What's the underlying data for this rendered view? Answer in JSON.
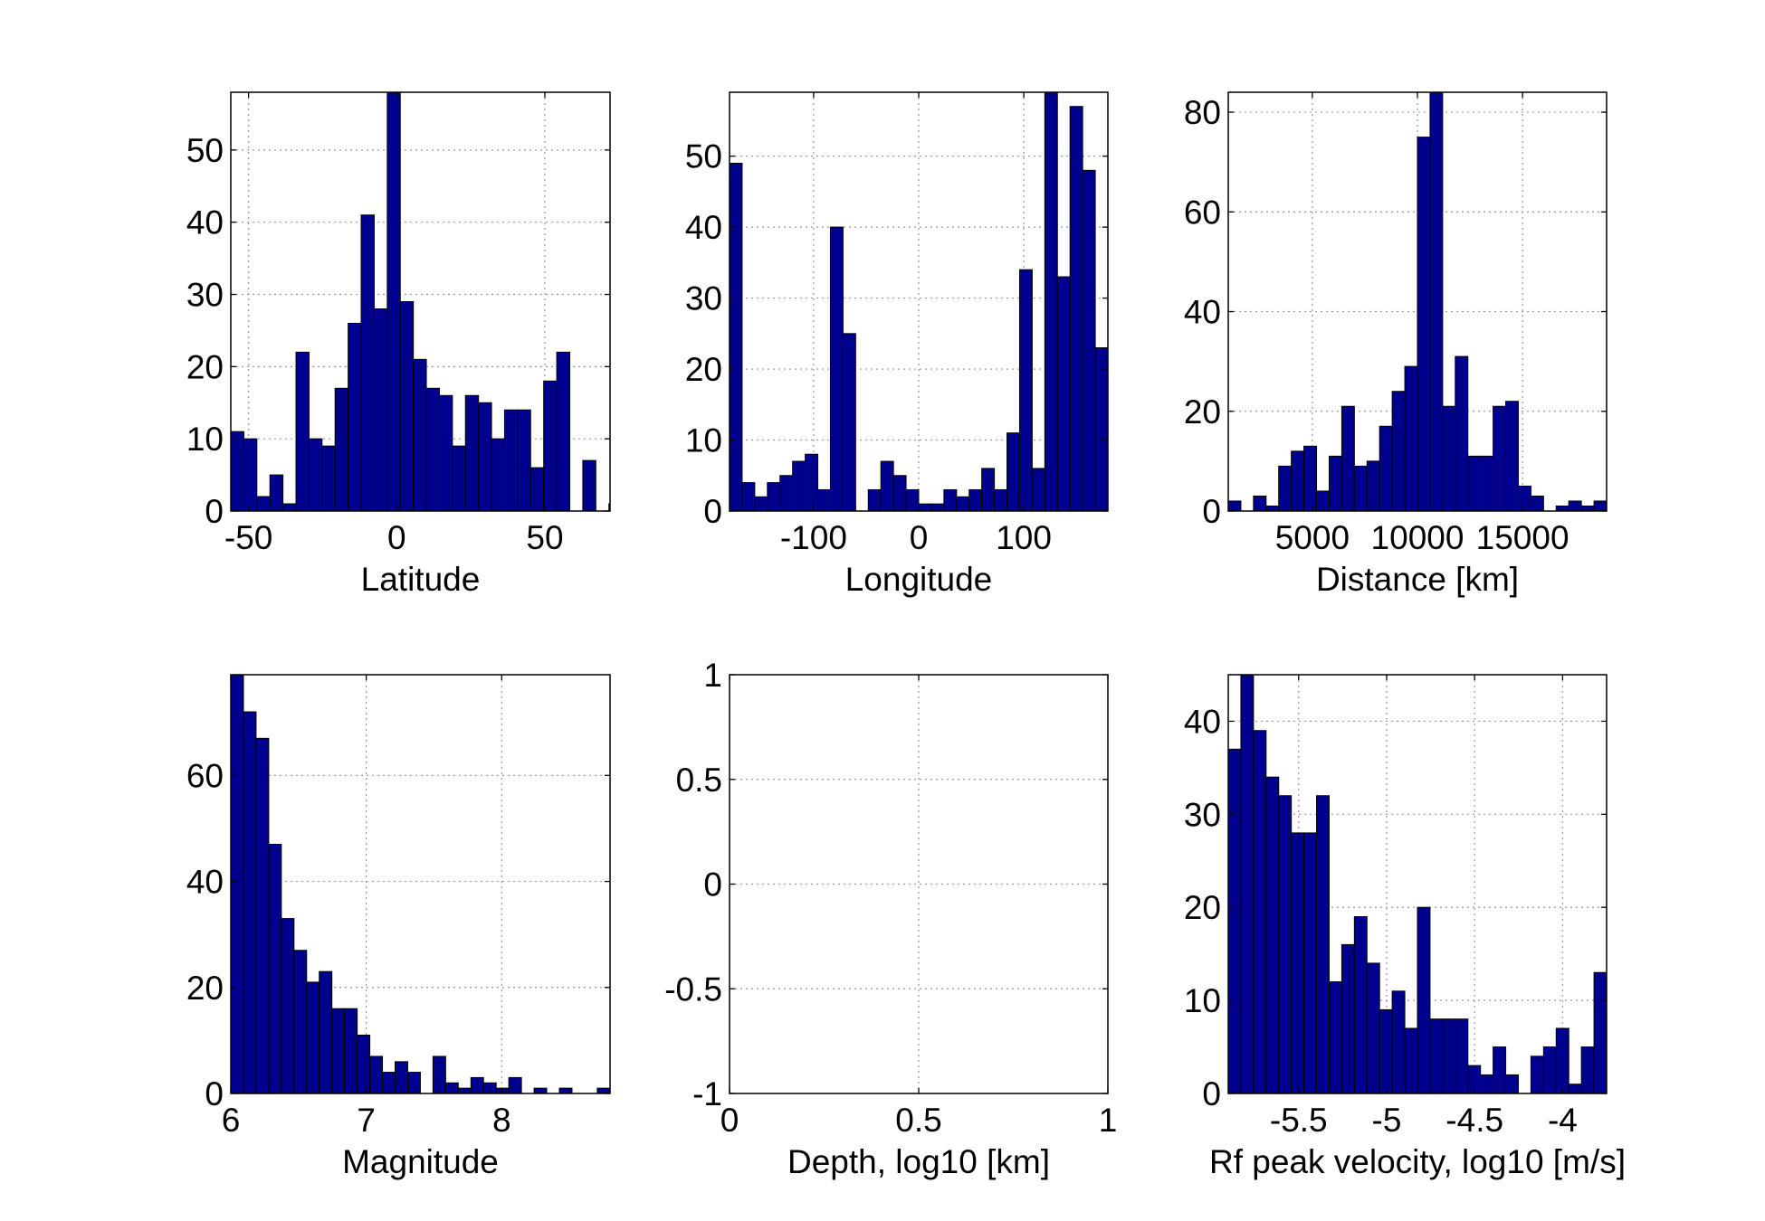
{
  "figure": {
    "bar_color": "#00008f",
    "bar_edge_color": "#000000",
    "grid": true
  },
  "chart_data": [
    {
      "type": "bar",
      "xlabel": "Latitude",
      "xlim": [
        -56,
        72
      ],
      "ylim": [
        0,
        58
      ],
      "xticks": [
        -50,
        0,
        50
      ],
      "xtick_labels": [
        "-50",
        "0",
        "50"
      ],
      "yticks": [
        0,
        10,
        20,
        30,
        40,
        50
      ],
      "ytick_labels": [
        "0",
        "10",
        "20",
        "30",
        "40",
        "50"
      ],
      "bin_start": -56,
      "bin_width": 4.4,
      "values": [
        11,
        10,
        2,
        5,
        1,
        22,
        10,
        9,
        17,
        26,
        41,
        28,
        58,
        29,
        21,
        17,
        16,
        9,
        16,
        15,
        10,
        14,
        14,
        6,
        18,
        22,
        0,
        7,
        0,
        1
      ]
    },
    {
      "type": "bar",
      "xlabel": "Longitude",
      "xlim": [
        -180,
        180
      ],
      "ylim": [
        0,
        59
      ],
      "xticks": [
        -100,
        0,
        100
      ],
      "xtick_labels": [
        "-100",
        "0",
        "100"
      ],
      "yticks": [
        0,
        10,
        20,
        30,
        40,
        50
      ],
      "ytick_labels": [
        "0",
        "10",
        "20",
        "30",
        "40",
        "50"
      ],
      "bin_start": -180,
      "bin_width": 12,
      "values": [
        49,
        4,
        2,
        4,
        5,
        7,
        8,
        3,
        40,
        25,
        0,
        3,
        7,
        5,
        3,
        1,
        1,
        3,
        2,
        3,
        6,
        3,
        11,
        34,
        6,
        59,
        33,
        57,
        48,
        23
      ]
    },
    {
      "type": "bar",
      "xlabel": "Distance [km]",
      "xlim": [
        1000,
        19000
      ],
      "ylim": [
        0,
        84
      ],
      "xticks": [
        5000,
        10000,
        15000
      ],
      "xtick_labels": [
        "5000",
        "10000",
        "15000"
      ],
      "yticks": [
        0,
        20,
        40,
        60,
        80
      ],
      "ytick_labels": [
        "0",
        "20",
        "40",
        "60",
        "80"
      ],
      "bin_start": 1000,
      "bin_width": 600,
      "values": [
        2,
        0,
        3,
        1,
        9,
        12,
        13,
        4,
        11,
        21,
        9,
        10,
        17,
        24,
        29,
        75,
        84,
        21,
        31,
        11,
        11,
        21,
        22,
        5,
        3,
        0,
        1,
        2,
        1,
        2
      ]
    },
    {
      "type": "bar",
      "xlabel": "Magnitude",
      "xlim": [
        6,
        8.8
      ],
      "ylim": [
        0,
        79
      ],
      "xticks": [
        6,
        7,
        8
      ],
      "xtick_labels": [
        "6",
        "7",
        "8"
      ],
      "yticks": [
        0,
        20,
        40,
        60
      ],
      "ytick_labels": [
        "0",
        "20",
        "40",
        "60"
      ],
      "bin_start": 6,
      "bin_width": 0.0933,
      "values": [
        79,
        72,
        67,
        47,
        33,
        27,
        21,
        23,
        16,
        16,
        11,
        7,
        4,
        6,
        4,
        0,
        7,
        2,
        1,
        3,
        2,
        1,
        3,
        0,
        1,
        0,
        1,
        0,
        0,
        1
      ]
    },
    {
      "type": "bar",
      "xlabel": "Depth, log10  [km]",
      "xlim": [
        0,
        1
      ],
      "ylim": [
        -1,
        1
      ],
      "xticks": [
        0,
        0.5,
        1
      ],
      "xtick_labels": [
        "0",
        "0.5",
        "1"
      ],
      "yticks": [
        -1,
        -0.5,
        0,
        0.5,
        1
      ],
      "ytick_labels": [
        "-1",
        "-0.5",
        "0",
        "0.5",
        "1"
      ],
      "bin_start": 0,
      "bin_width": 0.1,
      "values": []
    },
    {
      "type": "bar",
      "xlabel": "Rf peak velocity, log10 [m/s]",
      "xlim": [
        -5.9,
        -3.75
      ],
      "ylim": [
        0,
        45
      ],
      "xticks": [
        -5.5,
        -5,
        -4.5,
        -4
      ],
      "xtick_labels": [
        "-5.5",
        "-5",
        "-4.5",
        "-4"
      ],
      "yticks": [
        0,
        10,
        20,
        30,
        40
      ],
      "ytick_labels": [
        "0",
        "10",
        "20",
        "30",
        "40"
      ],
      "bin_start": -5.9,
      "bin_width": 0.07167,
      "values": [
        37,
        45,
        39,
        34,
        32,
        28,
        28,
        32,
        12,
        16,
        19,
        14,
        9,
        11,
        7,
        20,
        8,
        8,
        8,
        3,
        2,
        5,
        2,
        0,
        4,
        5,
        7,
        1,
        5,
        13
      ]
    }
  ]
}
